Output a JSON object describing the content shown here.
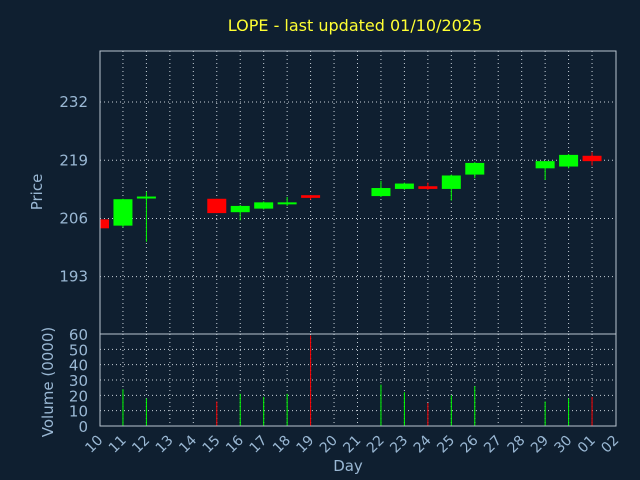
{
  "title": "LOPE - last updated 01/10/2025",
  "colors": {
    "up": "#00ff00",
    "down": "#ff0000",
    "background": "#0f1f30",
    "text": "#9ab8d4",
    "title": "#ffff33"
  },
  "chart_data": {
    "type": "candlestick",
    "price_axis": {
      "label": "Price",
      "ticks": [
        193,
        206,
        219,
        232
      ],
      "range": [
        180.2,
        243.4
      ]
    },
    "volume_axis": {
      "label": "Volume (0000)",
      "ticks": [
        0,
        10,
        20,
        30,
        40,
        50,
        60
      ],
      "range": [
        0,
        60
      ]
    },
    "x_axis": {
      "label": "Day",
      "ticks": [
        "10",
        "11",
        "12",
        "13",
        "14",
        "15",
        "16",
        "17",
        "18",
        "19",
        "20",
        "21",
        "22",
        "23",
        "24",
        "25",
        "26",
        "27",
        "28",
        "29",
        "30",
        "01",
        "02"
      ]
    },
    "grid": true,
    "candles": [
      {
        "day": "10",
        "open": 205.8,
        "high": 205.8,
        "low": 203.8,
        "close": 203.8,
        "volume": 0
      },
      {
        "day": "11",
        "open": 204.4,
        "high": 210.4,
        "low": 204.0,
        "close": 210.3,
        "volume": 24
      },
      {
        "day": "12",
        "open": 210.6,
        "high": 212.0,
        "low": 200.8,
        "close": 210.9,
        "volume": 18
      },
      {
        "day": "15",
        "open": 210.4,
        "high": 210.4,
        "low": 207.2,
        "close": 207.2,
        "volume": 16
      },
      {
        "day": "16",
        "open": 207.4,
        "high": 209.0,
        "low": 205.6,
        "close": 208.8,
        "volume": 21
      },
      {
        "day": "17",
        "open": 208.2,
        "high": 209.8,
        "low": 208.0,
        "close": 209.6,
        "volume": 19
      },
      {
        "day": "18",
        "open": 209.2,
        "high": 210.8,
        "low": 208.8,
        "close": 209.6,
        "volume": 21
      },
      {
        "day": "19",
        "open": 211.2,
        "high": 211.2,
        "low": 210.2,
        "close": 210.6,
        "volume": 59
      },
      {
        "day": "22",
        "open": 211.0,
        "high": 214.4,
        "low": 210.8,
        "close": 212.8,
        "volume": 27
      },
      {
        "day": "23",
        "open": 212.6,
        "high": 214.0,
        "low": 212.4,
        "close": 213.8,
        "volume": 22
      },
      {
        "day": "24",
        "open": 213.2,
        "high": 214.0,
        "low": 212.4,
        "close": 212.6,
        "volume": 15
      },
      {
        "day": "25",
        "open": 212.6,
        "high": 215.8,
        "low": 210.0,
        "close": 215.6,
        "volume": 20
      },
      {
        "day": "26",
        "open": 215.8,
        "high": 218.6,
        "low": 215.0,
        "close": 218.4,
        "volume": 26
      },
      {
        "day": "29",
        "open": 217.2,
        "high": 218.8,
        "low": 214.6,
        "close": 218.8,
        "volume": 16
      },
      {
        "day": "30",
        "open": 217.6,
        "high": 220.4,
        "low": 217.2,
        "close": 220.2,
        "volume": 18
      },
      {
        "day": "01",
        "open": 220.0,
        "high": 220.8,
        "low": 217.8,
        "close": 218.8,
        "volume": 19
      }
    ]
  }
}
